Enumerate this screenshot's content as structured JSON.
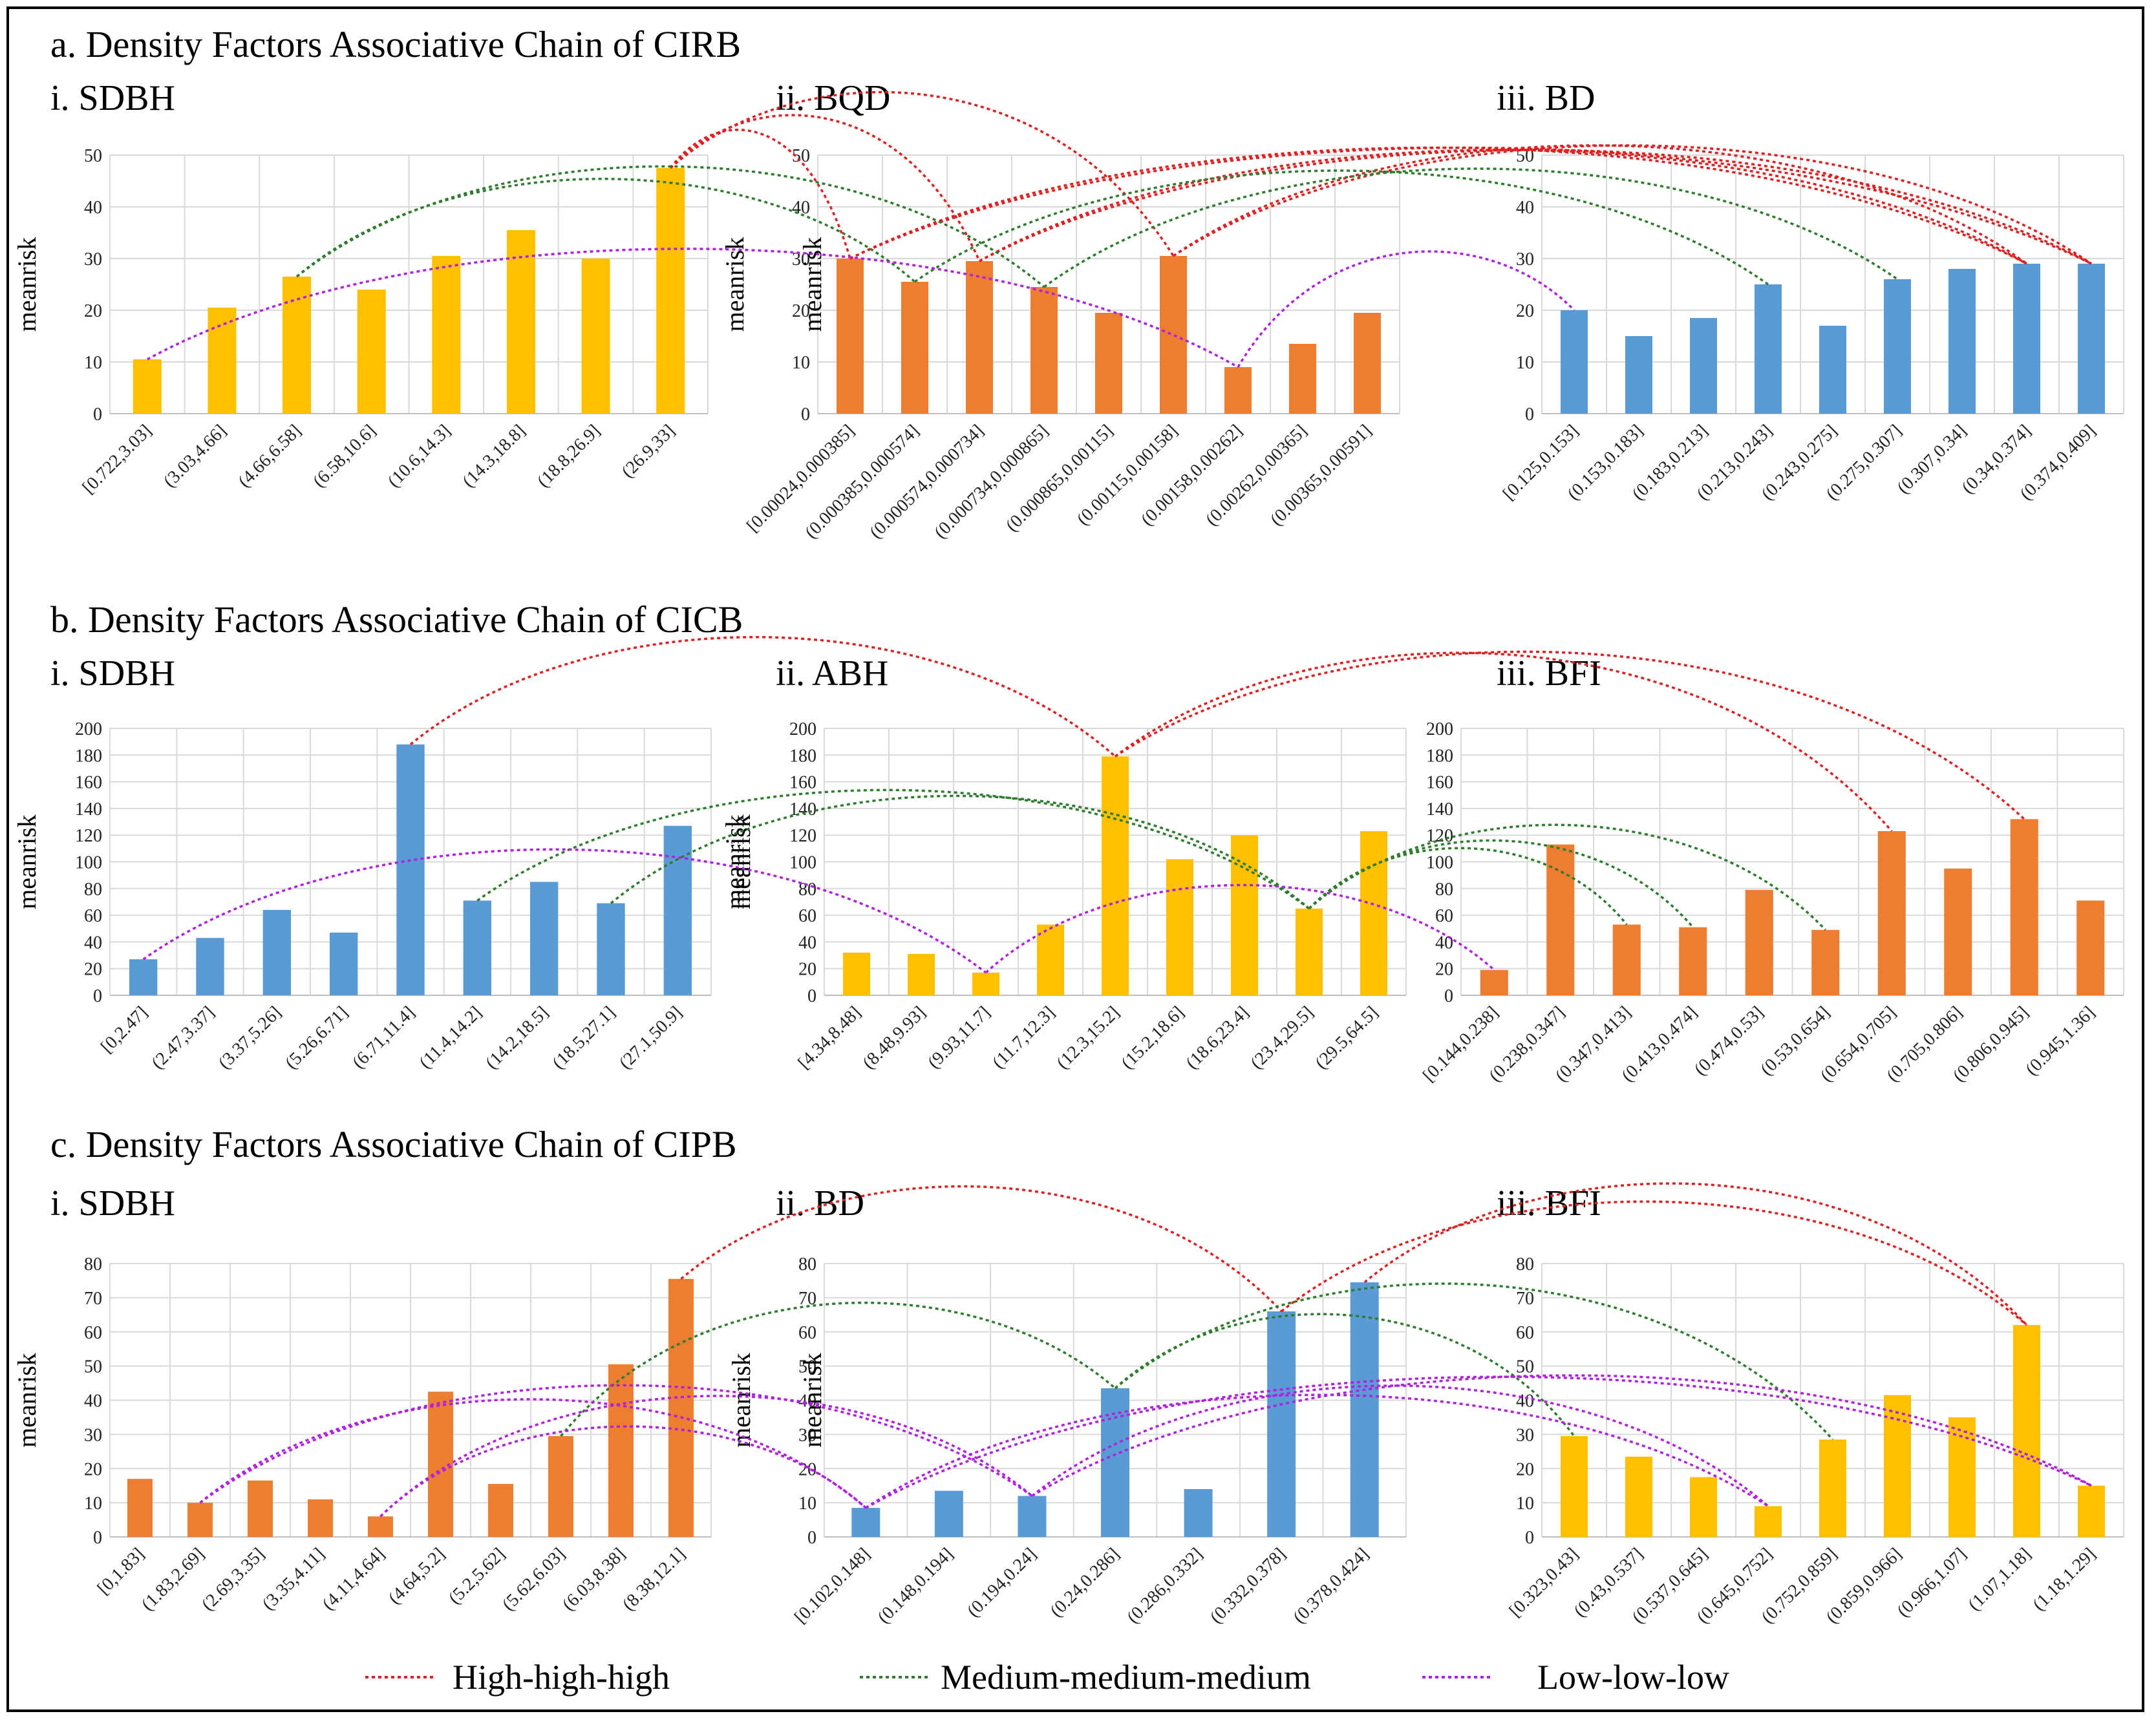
{
  "colors": {
    "yellow": "#FFC000",
    "orange": "#ED7D31",
    "blue": "#5B9BD5",
    "high": "#E02020",
    "medium": "#2E7D2E",
    "low": "#B020E0"
  },
  "legend": [
    {
      "label": "High-high-high",
      "color_key": "high"
    },
    {
      "label": "Medium-medium-medium",
      "color_key": "medium"
    },
    {
      "label": "Low-low-low",
      "color_key": "low"
    }
  ],
  "sections": [
    {
      "title": "a. Density Factors Associative Chain of CIRB"
    },
    {
      "title": "b. Density Factors Associative Chain of CICB"
    },
    {
      "title": "c. Density Factors Associative Chain of CIPB"
    }
  ],
  "chart_data": [
    {
      "type": "bar",
      "section": 0,
      "column": 0,
      "title": "i. SDBH",
      "ylabel": "meanrisk",
      "color_key": "yellow",
      "ylim": [
        0,
        50
      ],
      "yticks": [
        0,
        10,
        20,
        30,
        40,
        50
      ],
      "categories": [
        "[0.722,3.03]",
        "(3.03,4.66]",
        "(4.66,6.58]",
        "(6.58,10.6]",
        "(10.6,14.3]",
        "(14.3,18.8]",
        "(18.8,26.9]",
        "(26.9,33]"
      ],
      "values": [
        10.5,
        20.5,
        26.5,
        24,
        30.5,
        35.5,
        30,
        47.5
      ]
    },
    {
      "type": "bar",
      "section": 0,
      "column": 1,
      "title": "ii. BQD",
      "ylabel": "meanrisk",
      "color_key": "orange",
      "ylim": [
        0,
        50
      ],
      "yticks": [
        0,
        10,
        20,
        30,
        40,
        50
      ],
      "categories": [
        "[0.00024,0.000385]",
        "(0.000385,0.000574]",
        "(0.000574,0.000734]",
        "(0.000734,0.000865]",
        "(0.000865,0.00115]",
        "(0.00115,0.00158]",
        "(0.00158,0.00262]",
        "(0.00262,0.00365]",
        "(0.00365,0.00591]"
      ],
      "values": [
        30,
        25.5,
        29.5,
        24.5,
        19.5,
        30.5,
        9,
        13.5,
        19.5
      ]
    },
    {
      "type": "bar",
      "section": 0,
      "column": 2,
      "title": "iii. BD",
      "ylabel": "meanrisk",
      "color_key": "blue",
      "ylim": [
        0,
        50
      ],
      "yticks": [
        0,
        10,
        20,
        30,
        40,
        50
      ],
      "categories": [
        "[0.125,0.153]",
        "(0.153,0.183]",
        "(0.183,0.213]",
        "(0.213,0.243]",
        "(0.243,0.275]",
        "(0.275,0.307]",
        "(0.307,0.34]",
        "(0.34,0.374]",
        "(0.374,0.409]"
      ],
      "values": [
        20,
        15,
        18.5,
        25,
        17,
        26,
        28,
        29,
        29
      ]
    },
    {
      "type": "bar",
      "section": 1,
      "column": 0,
      "title": "i. SDBH",
      "ylabel": "meanrisk",
      "color_key": "blue",
      "ylim": [
        0,
        200
      ],
      "yticks": [
        0,
        20,
        40,
        60,
        80,
        100,
        120,
        140,
        160,
        180,
        200
      ],
      "categories": [
        "[0,2.47]",
        "(2.47,3.37]",
        "(3.37,5.26]",
        "(5.26,6.71]",
        "(6.71,11.4]",
        "(11.4,14.2]",
        "(14.2,18.5]",
        "(18.5,27.1]",
        "(27.1,50.9]"
      ],
      "values": [
        27,
        43,
        64,
        47,
        188,
        71,
        85,
        69,
        127
      ]
    },
    {
      "type": "bar",
      "section": 1,
      "column": 1,
      "title": "ii. ABH",
      "ylabel": "meanrisk",
      "color_key": "yellow",
      "ylim": [
        0,
        200
      ],
      "yticks": [
        0,
        20,
        40,
        60,
        80,
        100,
        120,
        140,
        160,
        180,
        200
      ],
      "categories": [
        "[4.34,8.48]",
        "(8.48,9.93]",
        "(9.93,11.7]",
        "(11.7,12.3]",
        "(12.3,15.2]",
        "(15.2,18.6]",
        "(18.6,23.4]",
        "(23.4,29.5]",
        "(29.5,64.5]"
      ],
      "values": [
        32,
        31,
        17,
        53,
        179,
        102,
        120,
        65,
        123
      ]
    },
    {
      "type": "bar",
      "section": 1,
      "column": 2,
      "title": "iii. BFI",
      "ylabel": "meanrisk",
      "color_key": "orange",
      "ylim": [
        0,
        200
      ],
      "yticks": [
        0,
        20,
        40,
        60,
        80,
        100,
        120,
        140,
        160,
        180,
        200
      ],
      "categories": [
        "[0.144,0.238]",
        "(0.238,0.347]",
        "(0.347,0.413]",
        "(0.413,0.474]",
        "(0.474,0.53]",
        "(0.53,0.654]",
        "(0.654,0.705]",
        "(0.705,0.806]",
        "(0.806,0.945]",
        "(0.945,1.36]"
      ],
      "values": [
        19,
        113,
        53,
        51,
        79,
        49,
        123,
        95,
        132,
        71
      ]
    },
    {
      "type": "bar",
      "section": 2,
      "column": 0,
      "title": "i. SDBH",
      "ylabel": "meanrisk",
      "color_key": "orange",
      "ylim": [
        0,
        80
      ],
      "yticks": [
        0,
        10,
        20,
        30,
        40,
        50,
        60,
        70,
        80
      ],
      "categories": [
        "[0,1.83]",
        "(1.83,2.69]",
        "(2.69,3.35]",
        "(3.35,4.11]",
        "(4.11,4.64]",
        "(4.64,5.2]",
        "(5.2,5.62]",
        "(5.62,6.03]",
        "(6.03,8.38]",
        "(8.38,12.1]"
      ],
      "values": [
        17,
        10,
        16.5,
        11,
        6,
        42.5,
        15.5,
        29.5,
        50.5,
        75.5
      ]
    },
    {
      "type": "bar",
      "section": 2,
      "column": 1,
      "title": "ii. BD",
      "ylabel": "meanrisk",
      "color_key": "blue",
      "ylim": [
        0,
        80
      ],
      "yticks": [
        0,
        10,
        20,
        30,
        40,
        50,
        60,
        70,
        80
      ],
      "categories": [
        "[0.102,0.148]",
        "(0.148,0.194]",
        "(0.194,0.24]",
        "(0.24,0.286]",
        "(0.286,0.332]",
        "(0.332,0.378]",
        "(0.378,0.424]"
      ],
      "values": [
        8.5,
        13.5,
        12,
        43.5,
        14,
        66,
        74.5
      ]
    },
    {
      "type": "bar",
      "section": 2,
      "column": 2,
      "title": "iii. BFI",
      "ylabel": "meanrisk",
      "color_key": "yellow",
      "ylim": [
        0,
        80
      ],
      "yticks": [
        0,
        10,
        20,
        30,
        40,
        50,
        60,
        70,
        80
      ],
      "categories": [
        "[0.323,0.43]",
        "(0.43,0.537]",
        "(0.537,0.645]",
        "(0.645,0.752]",
        "(0.752,0.859]",
        "(0.859,0.966]",
        "(0.966,1.07]",
        "(1.07,1.18]",
        "(1.18,1.29]"
      ],
      "values": [
        29.5,
        23.5,
        17.5,
        9,
        28.5,
        41.5,
        35,
        62,
        15
      ]
    }
  ],
  "chains": [
    {
      "section": 0,
      "type": "high",
      "links": [
        [
          0,
          7,
          1,
          0
        ],
        [
          0,
          7,
          1,
          2
        ],
        [
          0,
          7,
          1,
          5
        ],
        [
          1,
          0,
          2,
          7
        ],
        [
          1,
          0,
          2,
          8
        ],
        [
          1,
          2,
          2,
          7
        ],
        [
          1,
          2,
          2,
          8
        ],
        [
          1,
          5,
          2,
          7
        ],
        [
          1,
          5,
          2,
          8
        ]
      ]
    },
    {
      "section": 0,
      "type": "medium",
      "links": [
        [
          0,
          2,
          1,
          1
        ],
        [
          0,
          2,
          1,
          3
        ],
        [
          1,
          1,
          2,
          3
        ],
        [
          1,
          3,
          2,
          5
        ]
      ]
    },
    {
      "section": 0,
      "type": "low",
      "links": [
        [
          0,
          0,
          1,
          6
        ],
        [
          1,
          6,
          2,
          0
        ]
      ]
    },
    {
      "section": 1,
      "type": "high",
      "links": [
        [
          0,
          4,
          1,
          4
        ],
        [
          1,
          4,
          2,
          6
        ],
        [
          1,
          4,
          2,
          8
        ]
      ]
    },
    {
      "section": 1,
      "type": "medium",
      "links": [
        [
          0,
          5,
          1,
          7
        ],
        [
          0,
          7,
          1,
          7
        ],
        [
          1,
          7,
          2,
          2
        ],
        [
          1,
          7,
          2,
          3
        ],
        [
          1,
          7,
          2,
          5
        ]
      ]
    },
    {
      "section": 1,
      "type": "low",
      "links": [
        [
          0,
          0,
          1,
          2
        ],
        [
          1,
          2,
          2,
          0
        ]
      ]
    },
    {
      "section": 2,
      "type": "high",
      "links": [
        [
          0,
          9,
          1,
          5
        ],
        [
          1,
          5,
          2,
          7
        ],
        [
          1,
          6,
          2,
          7
        ]
      ]
    },
    {
      "section": 2,
      "type": "medium",
      "links": [
        [
          0,
          7,
          1,
          3
        ],
        [
          1,
          3,
          2,
          0
        ],
        [
          1,
          3,
          2,
          4
        ]
      ]
    },
    {
      "section": 2,
      "type": "low",
      "links": [
        [
          0,
          1,
          1,
          0
        ],
        [
          0,
          1,
          1,
          2
        ],
        [
          0,
          4,
          1,
          0
        ],
        [
          0,
          4,
          1,
          2
        ],
        [
          1,
          0,
          2,
          3
        ],
        [
          1,
          0,
          2,
          8
        ],
        [
          1,
          2,
          2,
          3
        ],
        [
          1,
          2,
          2,
          8
        ]
      ]
    }
  ]
}
